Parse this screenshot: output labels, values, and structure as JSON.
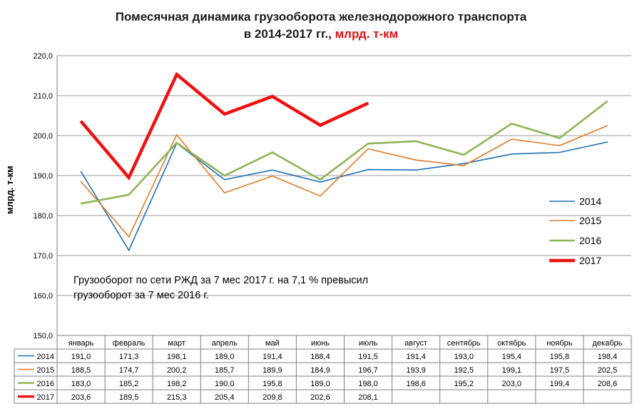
{
  "title": {
    "line1": "Помесячная динамика грузооборота железнодорожного транспорта",
    "line2_main": "в 2014-2017 гг., ",
    "line2_accent": "млрд. т-км"
  },
  "annotation": {
    "line1": "Грузооборот по сети РЖД за 7 мес 2017 г. на 7,1 % превысил",
    "line2": "грузооборот за 7 мес 2016 г."
  },
  "chart_data": {
    "type": "line",
    "ylabel": "млрд. т-км",
    "ylim": [
      150,
      220
    ],
    "ytick_step": 10,
    "ytick_labels": [
      "150,0",
      "160,0",
      "170,0",
      "180,0",
      "190,0",
      "200,0",
      "210,0",
      "220,0"
    ],
    "grid": true,
    "legend_position": "right",
    "categories": [
      "январь",
      "февраль",
      "март",
      "апрель",
      "май",
      "июнь",
      "июль",
      "август",
      "сентябрь",
      "октябрь",
      "ноябрь",
      "декабрь"
    ],
    "series": [
      {
        "name": "2014",
        "color": "#1f6fb0",
        "width": 1.6,
        "values": [
          191.0,
          171.3,
          198.1,
          189.0,
          191.4,
          188.4,
          191.5,
          191.4,
          193.0,
          195.4,
          195.8,
          198.4
        ],
        "labels": [
          "191,0",
          "171,3",
          "198,1",
          "189,0",
          "191,4",
          "188,4",
          "191,5",
          "191,4",
          "193,0",
          "195,4",
          "195,8",
          "198,4"
        ]
      },
      {
        "name": "2015",
        "color": "#e07b2a",
        "width": 1.6,
        "values": [
          188.5,
          174.7,
          200.2,
          185.7,
          189.9,
          184.9,
          196.7,
          193.9,
          192.5,
          199.1,
          197.5,
          202.5
        ],
        "labels": [
          "188,5",
          "174,7",
          "200,2",
          "185,7",
          "189,9",
          "184,9",
          "196,7",
          "193,9",
          "192,5",
          "199,1",
          "197,5",
          "202,5"
        ]
      },
      {
        "name": "2016",
        "color": "#8fb457",
        "width": 2.6,
        "values": [
          183.0,
          185.2,
          198.2,
          190.0,
          195.8,
          189.0,
          198.0,
          198.6,
          195.2,
          203.0,
          199.4,
          208.6
        ],
        "labels": [
          "183,0",
          "185,2",
          "198,2",
          "190,0",
          "195,8",
          "189,0",
          "198,0",
          "198,6",
          "195,2",
          "203,0",
          "199,4",
          "208,6"
        ]
      },
      {
        "name": "2017",
        "color": "#ee1111",
        "width": 4.5,
        "values": [
          203.6,
          189.5,
          215.3,
          205.4,
          209.8,
          202.6,
          208.1,
          null,
          null,
          null,
          null,
          null
        ],
        "labels": [
          "203,6",
          "189,5",
          "215,3",
          "205,4",
          "209,8",
          "202,6",
          "208,1",
          "",
          "",
          "",
          "",
          ""
        ]
      }
    ]
  }
}
